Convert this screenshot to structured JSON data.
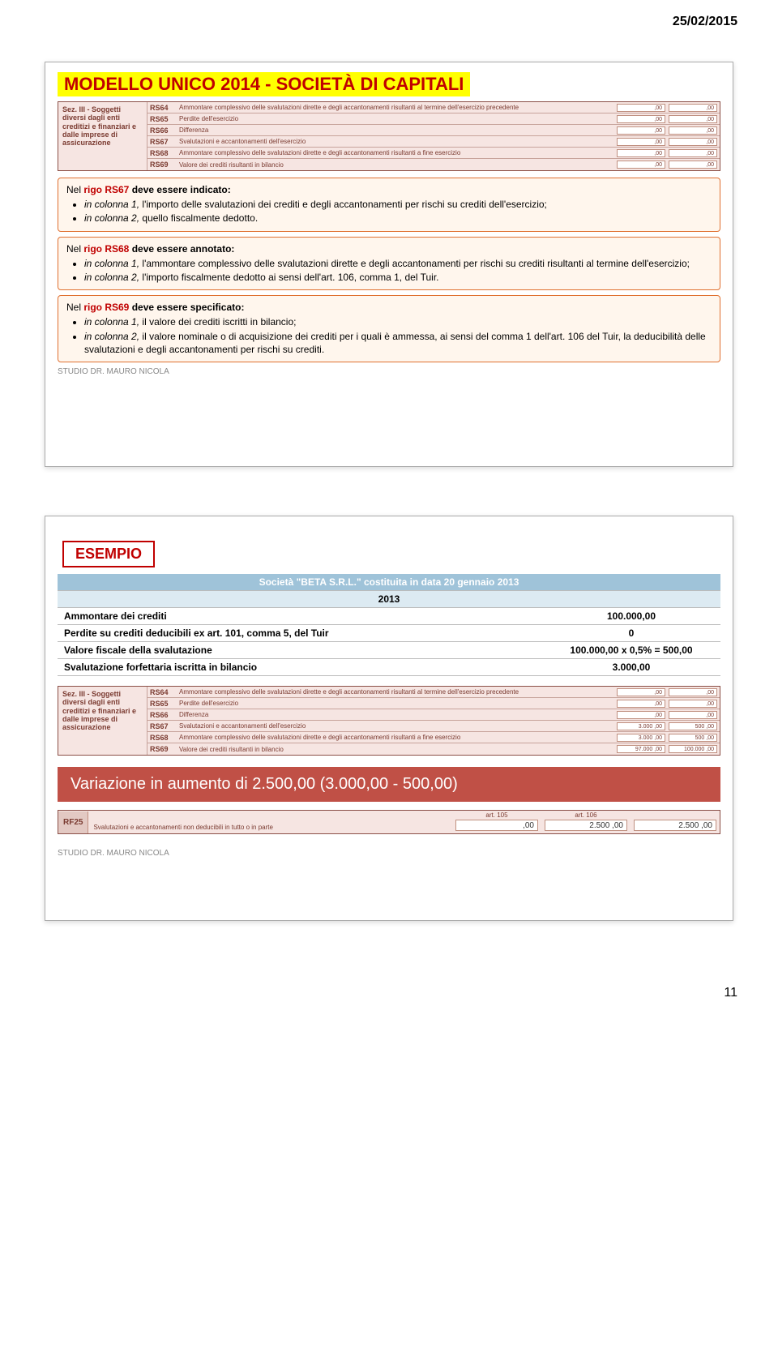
{
  "page_date": "25/02/2015",
  "page_number": "11",
  "slide1": {
    "title": "MODELLO UNICO 2014 - SOCIETÀ DI CAPITALI",
    "form_section_label": "Sez. III - Soggetti diversi dagli enti creditizi e finanziari e dalle imprese di assicurazione",
    "rows": [
      {
        "code": "RS64",
        "desc": "Ammontare complessivo delle svalutazioni dirette e degli accantonamenti risultanti al termine dell'esercizio precedente"
      },
      {
        "code": "RS65",
        "desc": "Perdite dell'esercizio"
      },
      {
        "code": "RS66",
        "desc": "Differenza"
      },
      {
        "code": "RS67",
        "desc": "Svalutazioni e accantonamenti dell'esercizio"
      },
      {
        "code": "RS68",
        "desc": "Ammontare complessivo delle svalutazioni dirette e degli accantonamenti risultanti a fine esercizio"
      },
      {
        "code": "RS69",
        "desc": "Valore dei crediti risultanti in bilancio"
      }
    ],
    "note1": {
      "lead_pre": "Nel ",
      "rigo": "rigo RS67",
      "lead_post": " deve essere indicato:",
      "items": [
        {
          "em": "in colonna 1,",
          "rest": " l'importo delle svalutazioni dei crediti e degli accantonamenti per rischi su crediti dell'esercizio;"
        },
        {
          "em": "in colonna 2,",
          "rest": " quello fiscalmente dedotto."
        }
      ]
    },
    "note2": {
      "lead_pre": "Nel ",
      "rigo": "rigo RS68",
      "lead_post": " deve essere annotato:",
      "items": [
        {
          "em": "in colonna 1,",
          "rest": " l'ammontare complessivo delle svalutazioni dirette e degli accantonamenti per rischi su crediti risultanti al termine dell'esercizio;"
        },
        {
          "em": "in colonna 2,",
          "rest": " l'importo fiscalmente dedotto ai sensi dell'art. 106, comma 1, del Tuir."
        }
      ]
    },
    "note3": {
      "lead_pre": "Nel ",
      "rigo": "rigo RS69",
      "lead_post": " deve essere specificato:",
      "items": [
        {
          "em": "in colonna 1,",
          "rest": " il valore dei crediti iscritti in bilancio;"
        },
        {
          "em": "in colonna 2,",
          "rest": " il valore nominale o di acquisizione dei crediti per i quali è ammessa, ai sensi del comma 1 dell'art. 106 del Tuir, la deducibilità delle svalutazioni e degli accantonamenti per rischi su crediti."
        }
      ]
    },
    "studio": "STUDIO DR. MAURO NICOLA"
  },
  "slide2": {
    "esempio_label": "ESEMPIO",
    "table_header1": "Società \"BETA S.R.L.\" costituita in data 20 gennaio 2013",
    "table_header2": "2013",
    "rows": [
      {
        "label": "Ammontare dei crediti",
        "val": "100.000,00"
      },
      {
        "label": "Perdite su crediti deducibili ex art. 101, comma 5, del Tuir",
        "val": "0"
      },
      {
        "label": "Valore fiscale della svalutazione",
        "val": "100.000,00 x 0,5% = 500,00"
      },
      {
        "label": "Svalutazione forfettaria iscritta in bilancio",
        "val": "3.000,00"
      }
    ],
    "form_section_label": "Sez. III - Soggetti diversi dagli enti creditizi e finanziari e dalle imprese di assicurazione",
    "form_rows": [
      {
        "code": "RS64",
        "desc": "Ammontare complessivo delle svalutazioni dirette e degli accantonamenti risultanti al termine dell'esercizio precedente",
        "v1": ",00",
        "v2": ",00"
      },
      {
        "code": "RS65",
        "desc": "Perdite dell'esercizio",
        "v1": ",00",
        "v2": ",00"
      },
      {
        "code": "RS66",
        "desc": "Differenza",
        "v1": ",00",
        "v2": ",00"
      },
      {
        "code": "RS67",
        "desc": "Svalutazioni e accantonamenti dell'esercizio",
        "v1": "3.000 ,00",
        "v2": "500 ,00"
      },
      {
        "code": "RS68",
        "desc": "Ammontare complessivo delle svalutazioni dirette e degli accantonamenti risultanti a fine esercizio",
        "v1": "3.000 ,00",
        "v2": "500 ,00"
      },
      {
        "code": "RS69",
        "desc": "Valore dei crediti risultanti in bilancio",
        "v1": "97.000 ,00",
        "v2": "100.000 ,00"
      }
    ],
    "variation_text": "Variazione in aumento di 2.500,00 (3.000,00 - 500,00)",
    "rf": {
      "code": "RF25",
      "desc": "Svalutazioni e accantonamenti non deducibili in tutto o in parte",
      "col1_label": "art. 105",
      "col1_val": ",00",
      "col2_label": "art. 106",
      "col2_val": "2.500 ,00",
      "col3_val": "2.500 ,00"
    },
    "studio": "STUDIO DR. MAURO NICOLA"
  }
}
